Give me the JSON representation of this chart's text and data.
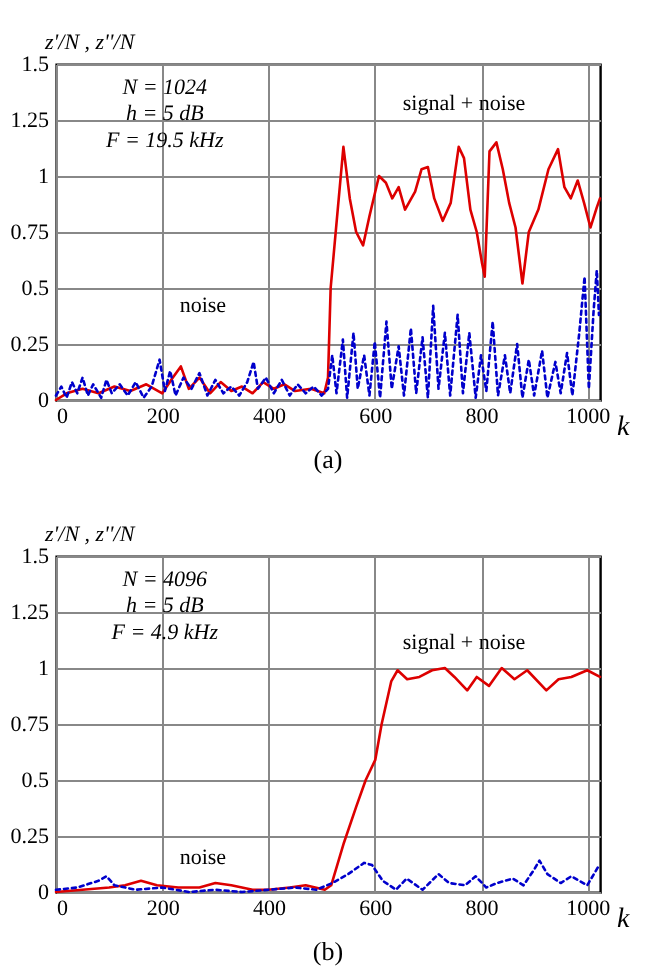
{
  "chart_data": [
    {
      "type": "line",
      "title": "(a)",
      "xlabel": "k",
      "ylabel": "z'/N , z''/N",
      "xlim": [
        0,
        1024
      ],
      "xticks": [
        0,
        200,
        400,
        600,
        800,
        1000
      ],
      "ylim": [
        0,
        1.5
      ],
      "yticks": [
        0,
        0.25,
        0.5,
        0.75,
        1,
        1.25,
        1.5
      ],
      "grid": true,
      "annotations": [
        "N = 1024",
        "h = 5 dB",
        "F = 19.5 kHz",
        "signal + noise",
        "noise"
      ],
      "series": [
        {
          "color": "#dd0000",
          "line_style": "solid",
          "x": [
            0,
            20,
            50,
            80,
            110,
            140,
            170,
            200,
            220,
            235,
            250,
            270,
            290,
            310,
            330,
            350,
            370,
            390,
            410,
            430,
            450,
            480,
            505,
            512,
            517,
            541,
            553,
            565,
            578,
            590,
            608,
            621,
            633,
            645,
            657,
            676,
            688,
            700,
            712,
            728,
            743,
            758,
            768,
            780,
            792,
            802,
            807,
            816,
            829,
            841,
            853,
            865,
            878,
            890,
            908,
            927,
            945,
            957,
            969,
            982,
            994,
            1006,
            1018,
            1024
          ],
          "values": [
            0,
            0.03,
            0.05,
            0.03,
            0.06,
            0.04,
            0.07,
            0.03,
            0.1,
            0.15,
            0.05,
            0.1,
            0.03,
            0.08,
            0.04,
            0.06,
            0.03,
            0.08,
            0.05,
            0.07,
            0.04,
            0.05,
            0.03,
            0.1,
            0.5,
            1.13,
            0.9,
            0.75,
            0.69,
            0.82,
            1.0,
            0.97,
            0.9,
            0.95,
            0.85,
            0.93,
            1.03,
            1.04,
            0.9,
            0.8,
            0.88,
            1.13,
            1.08,
            0.85,
            0.75,
            0.61,
            0.55,
            1.11,
            1.15,
            1.03,
            0.88,
            0.77,
            0.52,
            0.75,
            0.85,
            1.03,
            1.12,
            0.95,
            0.9,
            0.98,
            0.88,
            0.77,
            0.86,
            0.9
          ]
        },
        {
          "color": "#0000cc",
          "line_style": "dotted",
          "x": [
            0,
            10,
            20,
            30,
            40,
            50,
            60,
            70,
            85,
            95,
            105,
            120,
            135,
            150,
            165,
            180,
            195,
            205,
            215,
            225,
            240,
            255,
            270,
            285,
            300,
            315,
            330,
            345,
            360,
            372,
            380,
            395,
            410,
            425,
            440,
            455,
            470,
            485,
            500,
            512,
            520,
            528,
            540,
            548,
            560,
            568,
            580,
            590,
            600,
            610,
            622,
            632,
            645,
            655,
            668,
            678,
            690,
            700,
            710,
            720,
            732,
            742,
            756,
            766,
            778,
            790,
            800,
            810,
            822,
            832,
            845,
            855,
            868,
            878,
            890,
            900,
            915,
            925,
            940,
            950,
            962,
            972,
            985,
            995,
            1003,
            1012,
            1018,
            1022
          ],
          "values": [
            0.02,
            0.06,
            0.01,
            0.08,
            0.03,
            0.1,
            0.02,
            0.07,
            0.01,
            0.09,
            0.03,
            0.07,
            0.02,
            0.08,
            0.01,
            0.06,
            0.18,
            0.04,
            0.13,
            0.02,
            0.1,
            0.05,
            0.12,
            0.02,
            0.09,
            0.03,
            0.06,
            0.02,
            0.08,
            0.17,
            0.05,
            0.1,
            0.03,
            0.09,
            0.02,
            0.07,
            0.03,
            0.06,
            0.02,
            0.05,
            0.2,
            0.03,
            0.27,
            0.01,
            0.3,
            0.05,
            0.2,
            0.02,
            0.26,
            0.01,
            0.35,
            0.05,
            0.24,
            0.02,
            0.32,
            0.03,
            0.28,
            0.01,
            0.42,
            0.05,
            0.3,
            0.02,
            0.38,
            0.03,
            0.3,
            0.01,
            0.2,
            0.04,
            0.35,
            0.02,
            0.2,
            0.03,
            0.25,
            0.01,
            0.18,
            0.02,
            0.22,
            0.01,
            0.17,
            0.03,
            0.21,
            0.02,
            0.3,
            0.55,
            0.05,
            0.4,
            0.58,
            0.38
          ]
        }
      ]
    },
    {
      "type": "line",
      "title": "(b)",
      "xlabel": "k",
      "ylabel": "z'/N , z''/N",
      "xlim": [
        0,
        1024
      ],
      "xticks": [
        0,
        200,
        400,
        600,
        800,
        1000
      ],
      "ylim": [
        0,
        1.5
      ],
      "yticks": [
        0,
        0.25,
        0.5,
        0.75,
        1,
        1.25,
        1.5
      ],
      "grid": true,
      "annotations": [
        "N = 4096",
        "h = 5 dB",
        "F = 4.9 kHz",
        "signal + noise",
        "noise"
      ],
      "series": [
        {
          "color": "#dd0000",
          "line_style": "solid",
          "x": [
            0,
            50,
            100,
            130,
            160,
            190,
            230,
            270,
            300,
            330,
            370,
            400,
            440,
            470,
            506,
            518,
            542,
            565,
            583,
            601,
            613,
            631,
            643,
            661,
            684,
            708,
            732,
            750,
            774,
            792,
            815,
            839,
            863,
            887,
            923,
            946,
            970,
            1000,
            1024
          ],
          "values": [
            0,
            0.01,
            0.02,
            0.03,
            0.05,
            0.03,
            0.02,
            0.02,
            0.04,
            0.03,
            0.01,
            0.01,
            0.02,
            0.03,
            0.01,
            0.03,
            0.22,
            0.38,
            0.5,
            0.59,
            0.75,
            0.94,
            0.99,
            0.95,
            0.96,
            0.99,
            1.0,
            0.96,
            0.9,
            0.96,
            0.92,
            1.0,
            0.95,
            0.99,
            0.9,
            0.95,
            0.96,
            0.99,
            0.96
          ]
        },
        {
          "color": "#0000cc",
          "line_style": "dotted",
          "x": [
            0,
            40,
            80,
            95,
            110,
            150,
            200,
            250,
            300,
            350,
            400,
            450,
            490,
            520,
            550,
            580,
            595,
            615,
            640,
            660,
            690,
            720,
            740,
            770,
            790,
            810,
            830,
            860,
            880,
            900,
            910,
            925,
            950,
            970,
            1000,
            1020
          ],
          "values": [
            0.01,
            0.02,
            0.05,
            0.07,
            0.03,
            0.01,
            0.02,
            0,
            0.01,
            0,
            0.01,
            0.02,
            0.01,
            0.04,
            0.08,
            0.13,
            0.12,
            0.05,
            0.01,
            0.06,
            0.01,
            0.08,
            0.04,
            0.03,
            0.07,
            0.02,
            0.04,
            0.06,
            0.03,
            0.1,
            0.14,
            0.08,
            0.04,
            0.07,
            0.03,
            0.11
          ]
        }
      ]
    }
  ]
}
